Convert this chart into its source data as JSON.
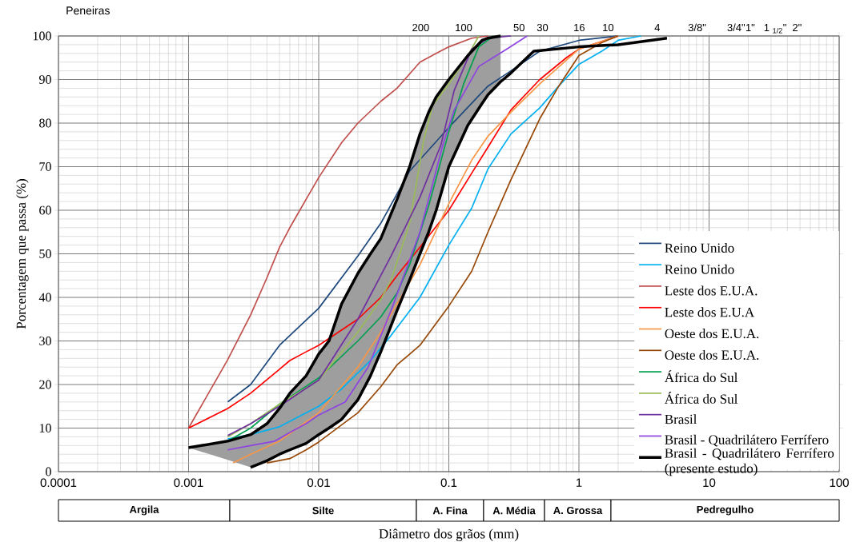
{
  "chart_data": {
    "type": "line",
    "xlabel": "Diâmetro dos grãos (mm)",
    "ylabel": "Porcentagem que passa (%)",
    "xlim": [
      0.0001,
      100
    ],
    "xticks": [
      0.0001,
      0.001,
      0.01,
      0.1,
      1,
      10,
      100
    ],
    "ylim": [
      0,
      100
    ],
    "yticks": [
      0,
      10,
      20,
      30,
      40,
      50,
      60,
      70,
      80,
      90,
      100
    ],
    "log": "x",
    "grid": true,
    "legend": "bottom right",
    "marker": "none",
    "line_style": "solid",
    "annotations": [
      "Peneiras",
      "200",
      "100",
      "50",
      "30",
      "16",
      "10",
      "4",
      "3/8\"",
      "3/4\"",
      "1\"",
      "1 $_{1/2}$\"",
      "2\"",
      "Argila",
      "Silte",
      "A. Fina",
      "A. Média",
      "A. Grossa",
      "Pedregulho"
    ],
    "series": [
      {
        "name": "Reino Unido",
        "color": "#1f497d",
        "x": [
          0.002,
          0.003,
          0.005,
          0.01,
          0.02,
          0.03,
          0.05,
          0.1,
          0.2,
          0.3,
          0.5,
          1,
          2
        ],
        "values": [
          16,
          20,
          29,
          37.5,
          49.5,
          57,
          69,
          79,
          88.5,
          92,
          96.5,
          99,
          100
        ]
      },
      {
        "name": "Reino Unido",
        "color": "#00b0f0",
        "x": [
          0.002,
          0.003,
          0.005,
          0.01,
          0.015,
          0.025,
          0.035,
          0.06,
          0.1,
          0.15,
          0.2,
          0.3,
          0.5,
          0.7,
          1,
          1.5,
          2,
          3
        ],
        "values": [
          7.5,
          8.5,
          10.3,
          15,
          19,
          25.5,
          30.8,
          40,
          52,
          60.5,
          69.5,
          77.5,
          83.5,
          88.5,
          93.5,
          96.5,
          99,
          100
        ]
      },
      {
        "name": "Leste dos E.U.A.",
        "color": "#c0504d",
        "x": [
          0.001,
          0.002,
          0.003,
          0.004,
          0.005,
          0.006,
          0.008,
          0.01,
          0.015,
          0.02,
          0.03,
          0.04,
          0.06,
          0.08,
          0.1,
          0.15,
          0.2
        ],
        "values": [
          10,
          25.7,
          36,
          44.5,
          51.5,
          56,
          62.5,
          67.5,
          75.5,
          80,
          85,
          88,
          94,
          96,
          97.5,
          99.5,
          100
        ]
      },
      {
        "name": "Leste dos E.U.A",
        "color": "#ff0000",
        "x": [
          0.001,
          0.002,
          0.003,
          0.005,
          0.006,
          0.008,
          0.01,
          0.02,
          0.03,
          0.04,
          0.06,
          0.1,
          0.15,
          0.2,
          0.3,
          0.5,
          0.8,
          1,
          2
        ],
        "values": [
          10,
          14.5,
          18,
          23.5,
          25.5,
          27.5,
          29,
          35,
          40,
          45,
          51.5,
          60,
          68.5,
          74.5,
          83,
          90,
          95,
          97,
          100
        ]
      },
      {
        "name": "Oeste dos E.U.A.",
        "color": "#f79646",
        "x": [
          0.0022,
          0.003,
          0.005,
          0.01,
          0.02,
          0.03,
          0.04,
          0.06,
          0.1,
          0.15,
          0.2,
          0.3,
          0.5,
          1,
          2
        ],
        "values": [
          2,
          4,
          7,
          13.5,
          24,
          32,
          38.5,
          47.5,
          61.5,
          71.5,
          77,
          82.5,
          89,
          97,
          100
        ]
      },
      {
        "name": "Oeste dos E.U.A.",
        "color": "#984807",
        "x": [
          0.004,
          0.006,
          0.008,
          0.01,
          0.02,
          0.03,
          0.04,
          0.06,
          0.1,
          0.15,
          0.2,
          0.3,
          0.5,
          0.7,
          1,
          1.5,
          2
        ],
        "values": [
          2,
          3,
          5,
          6.8,
          13.5,
          19.5,
          24.5,
          29,
          38,
          46,
          55,
          67,
          81,
          88.5,
          95.5,
          98.5,
          100
        ]
      },
      {
        "name": "África do Sul",
        "color": "#00a050",
        "x": [
          0.002,
          0.003,
          0.005,
          0.01,
          0.02,
          0.03,
          0.04,
          0.05,
          0.07,
          0.1,
          0.13,
          0.17,
          0.22
        ],
        "values": [
          7,
          10,
          15.5,
          21.5,
          30,
          35.5,
          41,
          47.5,
          61,
          78,
          89,
          97.5,
          100
        ]
      },
      {
        "name": "África do Sul",
        "color": "#9bbb59",
        "x": [
          0.002,
          0.003,
          0.005,
          0.01,
          0.02,
          0.03,
          0.036,
          0.05,
          0.064,
          0.075,
          0.1,
          0.14,
          0.17
        ],
        "values": [
          8,
          11,
          15.5,
          21,
          32,
          39.5,
          44,
          57,
          76,
          84,
          89,
          95.5,
          100
        ]
      },
      {
        "name": "Brasil",
        "color": "#7030a0",
        "x": [
          0.002,
          0.003,
          0.005,
          0.0077,
          0.01,
          0.02,
          0.036,
          0.06,
          0.087,
          0.11,
          0.15,
          0.2,
          0.3
        ],
        "values": [
          8.3,
          11,
          15,
          18.8,
          21,
          35,
          49.5,
          63,
          75,
          87.5,
          97,
          99.5,
          100
        ]
      },
      {
        "name": "Brasil - Quadrilátero Ferrífero",
        "color": "#8e44e0",
        "x": [
          0.002,
          0.003,
          0.0046,
          0.006,
          0.008,
          0.01,
          0.016,
          0.024,
          0.036,
          0.06,
          0.09,
          0.11,
          0.17,
          0.28,
          0.4
        ],
        "values": [
          5,
          6,
          7,
          9,
          11,
          13,
          16,
          24,
          37,
          55,
          75,
          83,
          93,
          97,
          100
        ]
      },
      {
        "name": "Brasil - Quadrilátero Ferrífero (presente estudo)",
        "color": "#000000",
        "x": [
          0.001,
          0.002,
          0.003,
          0.004,
          0.005,
          0.006,
          0.008,
          0.01,
          0.012,
          0.015,
          0.02,
          0.025,
          0.03,
          0.04,
          0.05,
          0.06,
          0.07,
          0.08,
          0.1,
          0.14,
          0.18,
          0.2,
          0.25
        ],
        "values": [
          5.5,
          7,
          8.5,
          11,
          14.5,
          18,
          22,
          27,
          30,
          38.5,
          45.5,
          50,
          53.5,
          62.5,
          70,
          77.5,
          82.5,
          86,
          90,
          95.5,
          99,
          99.5,
          100
        ],
        "upper": [
          5.5,
          7,
          8.5,
          11,
          14.5,
          18,
          22,
          27,
          30,
          38.5,
          45.5,
          50,
          53.5,
          62.5,
          70,
          77.5,
          82.5,
          86,
          90,
          95.5,
          99,
          99.5,
          100
        ],
        "lower": [
          5.5,
          2.7,
          1,
          2.5,
          4,
          5,
          6.5,
          8.5,
          10,
          12,
          16.5,
          22,
          27.5,
          37,
          44,
          50,
          55,
          60,
          70,
          79.5,
          84.5,
          86.5,
          89.5
        ]
      },
      {
        "color": "#000000",
        "x": [
          0.003,
          0.004,
          0.005,
          0.006,
          0.008,
          0.01,
          0.012,
          0.015,
          0.02,
          0.025,
          0.03,
          0.04,
          0.05,
          0.06,
          0.07,
          0.08,
          0.1,
          0.14,
          0.18,
          0.2,
          0.25,
          0.3,
          0.45,
          1,
          2,
          4.75
        ],
        "values": [
          1,
          2.5,
          4,
          5,
          6.5,
          8.5,
          10,
          12,
          16.5,
          22,
          27.5,
          37,
          44,
          50,
          55,
          60,
          70,
          79.5,
          84.5,
          86.5,
          89.5,
          91.5,
          96.5,
          97.5,
          98,
          99.5
        ]
      }
    ]
  }
}
